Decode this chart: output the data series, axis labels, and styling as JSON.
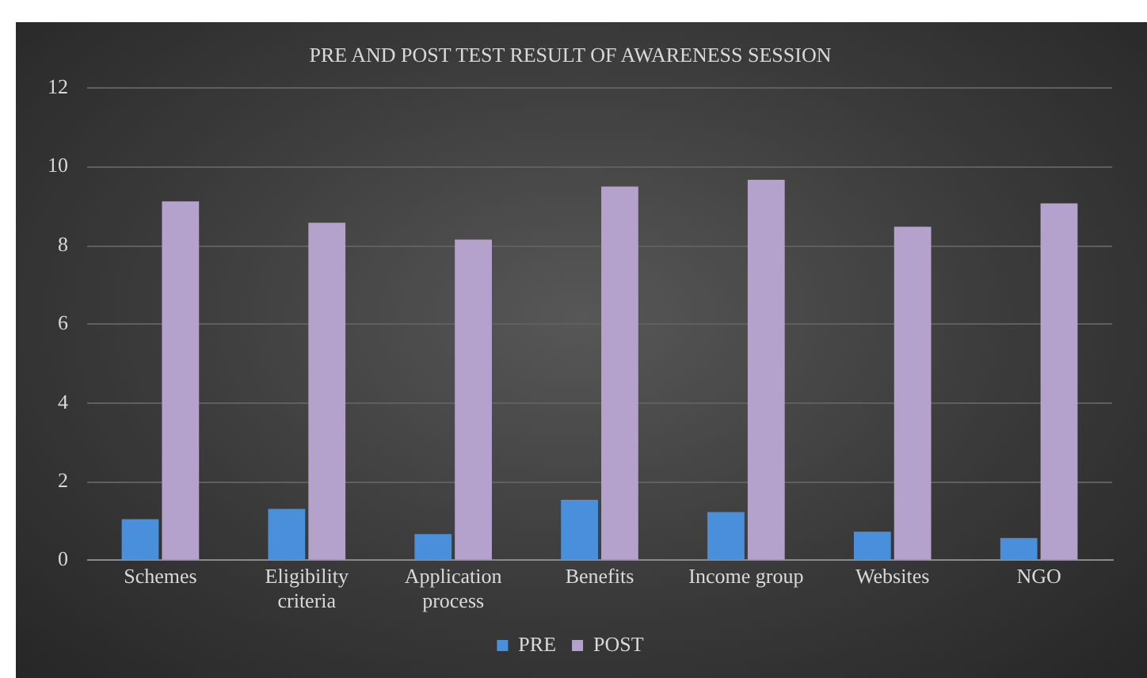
{
  "chart_data": {
    "type": "bar",
    "title": "PRE AND POST TEST RESULT OF AWARENESS SESSION",
    "categories": [
      "Schemes",
      "Eligibility criteria",
      "Application process",
      "Benefits",
      "Income group",
      "Websites",
      "NGO"
    ],
    "series": [
      {
        "name": "PRE",
        "color": "#4a8fdb",
        "values": [
          1.05,
          1.31,
          0.67,
          1.54,
          1.23,
          0.73,
          0.57
        ]
      },
      {
        "name": "POST",
        "color": "#b4a2cc",
        "values": [
          9.12,
          8.58,
          8.15,
          9.5,
          9.67,
          8.48,
          9.07
        ]
      }
    ],
    "ylim": [
      0,
      12
    ],
    "yticks": [
      0,
      2,
      4,
      6,
      8,
      10,
      12
    ],
    "grid": "y",
    "legend": "bottom"
  }
}
